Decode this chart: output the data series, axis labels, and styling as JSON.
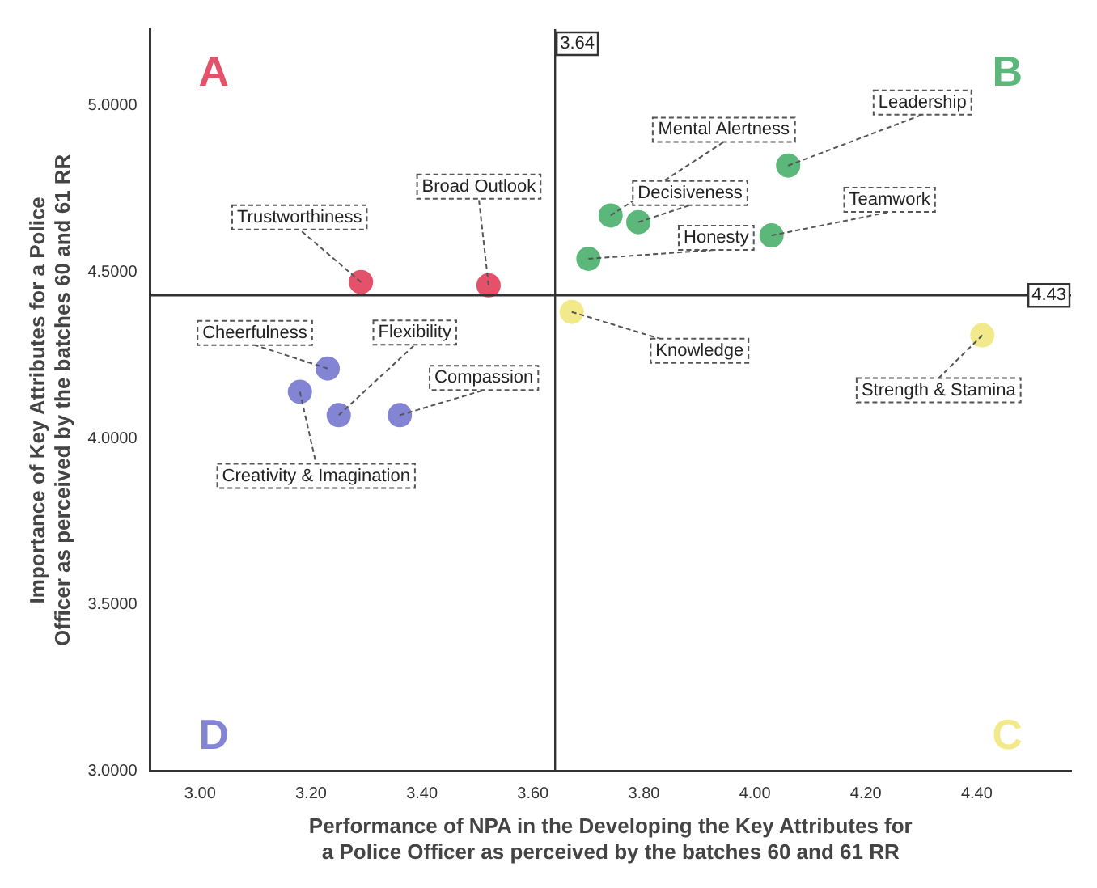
{
  "chart_data": {
    "type": "scatter",
    "xlabel": "Performance of NPA in the Developing the Key Attributes for a Police Officer as perceived by the batches 60 and 61 RR",
    "ylabel": "Importance of Key Attributes for a Police Officer as perceived by the batches 60 and 61 RR",
    "series": [
      {
        "name": "A",
        "color": "#e5506a",
        "x": [
          3.29,
          3.52
        ],
        "values": [
          4.47,
          4.46
        ]
      },
      {
        "name": "B",
        "color": "#5cb87a",
        "x": [
          3.74,
          3.79,
          3.7,
          4.06,
          4.03
        ],
        "values": [
          4.67,
          4.65,
          4.54,
          4.82,
          4.61
        ]
      },
      {
        "name": "C",
        "color": "#f2e98a",
        "x": [
          3.67,
          4.41
        ],
        "values": [
          4.38,
          4.31
        ]
      },
      {
        "name": "D",
        "color": "#8484d4",
        "x": [
          3.23,
          3.18,
          3.25,
          3.36
        ],
        "values": [
          4.21,
          4.14,
          4.07,
          4.07
        ]
      }
    ],
    "annotations": [
      {
        "text": "Trustworthiness",
        "x": 3.29,
        "y": 4.47
      },
      {
        "text": "Broad Outlook",
        "x": 3.52,
        "y": 4.46
      },
      {
        "text": "Mental Alertness",
        "x": 3.74,
        "y": 4.67
      },
      {
        "text": "Decisiveness",
        "x": 3.79,
        "y": 4.65
      },
      {
        "text": "Honesty",
        "x": 3.7,
        "y": 4.54
      },
      {
        "text": "Leadership",
        "x": 4.06,
        "y": 4.82
      },
      {
        "text": "Teamwork",
        "x": 4.03,
        "y": 4.61
      },
      {
        "text": "Knowledge",
        "x": 3.67,
        "y": 4.38
      },
      {
        "text": "Strength & Stamina",
        "x": 4.41,
        "y": 4.31
      },
      {
        "text": "Cheerfulness",
        "x": 3.23,
        "y": 4.21
      },
      {
        "text": "Creativity & Imagination",
        "x": 3.18,
        "y": 4.14
      },
      {
        "text": "Flexibility",
        "x": 3.25,
        "y": 4.07
      },
      {
        "text": "Compassion",
        "x": 3.36,
        "y": 4.07
      }
    ],
    "ref_lines": [
      {
        "axis": "x",
        "value": 3.64,
        "label": "3.64"
      },
      {
        "axis": "y",
        "value": 4.43,
        "label": "4.43"
      }
    ],
    "xlim": [
      2.91,
      4.57
    ],
    "ylim": [
      3.0,
      5.23
    ],
    "xticks": [
      {
        "value": 3.0,
        "label": "3.00"
      },
      {
        "value": 3.2,
        "label": "3.20"
      },
      {
        "value": 3.4,
        "label": "3.40"
      },
      {
        "value": 3.6,
        "label": "3.60"
      },
      {
        "value": 3.8,
        "label": "3.80"
      },
      {
        "value": 4.0,
        "label": "4.00"
      },
      {
        "value": 4.2,
        "label": "4.20"
      },
      {
        "value": 4.4,
        "label": "4.40"
      }
    ],
    "yticks": [
      {
        "value": 3.0,
        "label": "3.0000"
      },
      {
        "value": 3.5,
        "label": "3.5000"
      },
      {
        "value": 4.0,
        "label": "4.0000"
      },
      {
        "value": 4.5,
        "label": "4.5000"
      },
      {
        "value": 5.0,
        "label": "5.0000"
      }
    ],
    "grid": false,
    "legend": false,
    "marker": "circle"
  }
}
